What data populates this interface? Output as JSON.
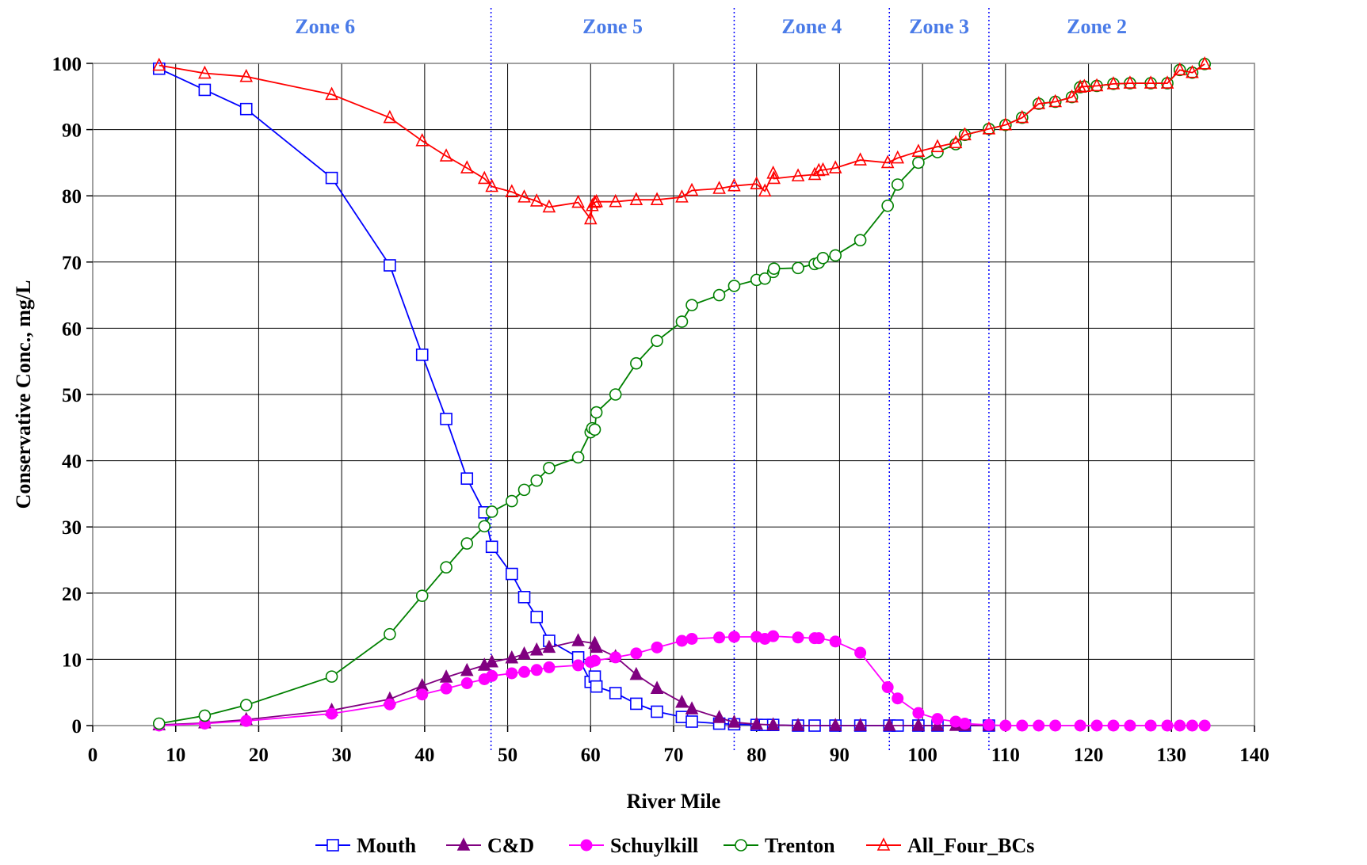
{
  "chart_data": {
    "type": "line",
    "xlabel": "River Mile",
    "ylabel": "Conservative Conc., mg/L",
    "xlim": [
      0,
      140
    ],
    "ylim": [
      0,
      100
    ],
    "xticks": [
      "0",
      "10",
      "20",
      "30",
      "40",
      "50",
      "60",
      "70",
      "80",
      "90",
      "100",
      "110",
      "120",
      "130",
      "140"
    ],
    "yticks": [
      "0",
      "10",
      "20",
      "30",
      "40",
      "50",
      "60",
      "70",
      "80",
      "90",
      "100"
    ],
    "grid": true,
    "legend_position": "bottom",
    "zones": [
      {
        "label": "Zone 6",
        "from": 8,
        "to": 48
      },
      {
        "label": "Zone 5",
        "from": 48,
        "to": 77.3
      },
      {
        "label": "Zone 4",
        "from": 77.3,
        "to": 96
      },
      {
        "label": "Zone 3",
        "from": 96,
        "to": 108
      },
      {
        "label": "Zone 2",
        "from": 108,
        "to": 134
      }
    ],
    "zone_boundaries": [
      48,
      77.3,
      96,
      108
    ],
    "series": [
      {
        "name": "Mouth",
        "color": "#0000FF",
        "marker": "square-open",
        "points": [
          [
            8,
            99.2
          ],
          [
            13.5,
            96
          ],
          [
            18.5,
            93.1
          ],
          [
            28.8,
            82.7
          ],
          [
            35.8,
            69.5
          ],
          [
            39.7,
            56
          ],
          [
            42.6,
            46.3
          ],
          [
            45.1,
            37.3
          ],
          [
            47.2,
            32.2
          ],
          [
            48.1,
            27
          ],
          [
            50.5,
            22.9
          ],
          [
            52,
            19.4
          ],
          [
            53.5,
            16.4
          ],
          [
            55,
            12.8
          ],
          [
            58.5,
            10.3
          ],
          [
            60,
            6.6
          ],
          [
            60.5,
            7.4
          ],
          [
            60.7,
            5.9
          ],
          [
            63,
            4.9
          ],
          [
            65.5,
            3.3
          ],
          [
            68,
            2.1
          ],
          [
            71,
            1.3
          ],
          [
            72.2,
            0.6
          ],
          [
            75.5,
            0.3
          ],
          [
            77.3,
            0.2
          ],
          [
            80,
            0.1
          ],
          [
            81,
            0.1
          ],
          [
            82,
            0.1
          ],
          [
            85,
            0
          ],
          [
            87,
            0
          ],
          [
            89.5,
            0
          ],
          [
            92.5,
            0
          ],
          [
            96,
            0
          ],
          [
            97,
            0
          ],
          [
            99.5,
            0
          ],
          [
            101.8,
            0
          ],
          [
            105.1,
            0
          ],
          [
            108,
            0
          ]
        ]
      },
      {
        "name": "C&D",
        "color": "#800080",
        "marker": "triangle-filled",
        "points": [
          [
            8,
            0.1
          ],
          [
            13.5,
            0.4
          ],
          [
            18.5,
            0.9
          ],
          [
            28.8,
            2.3
          ],
          [
            35.8,
            4
          ],
          [
            39.7,
            6
          ],
          [
            42.6,
            7.3
          ],
          [
            45.1,
            8.3
          ],
          [
            47.2,
            9.1
          ],
          [
            48.1,
            9.6
          ],
          [
            50.5,
            10.2
          ],
          [
            52,
            10.8
          ],
          [
            53.5,
            11.4
          ],
          [
            55,
            11.8
          ],
          [
            58.5,
            12.8
          ],
          [
            60.5,
            12.4
          ],
          [
            60.7,
            11.8
          ],
          [
            63,
            10.4
          ],
          [
            65.5,
            7.7
          ],
          [
            68,
            5.6
          ],
          [
            71,
            3.5
          ],
          [
            72.2,
            2.5
          ],
          [
            75.5,
            1.2
          ],
          [
            77.3,
            0.5
          ],
          [
            80,
            0.2
          ],
          [
            82,
            0.1
          ],
          [
            85,
            0
          ],
          [
            89.5,
            0
          ],
          [
            92.5,
            0
          ],
          [
            96,
            0
          ],
          [
            99.5,
            0
          ],
          [
            101.8,
            0
          ],
          [
            104,
            0
          ],
          [
            105.1,
            0
          ],
          [
            108,
            0
          ]
        ]
      },
      {
        "name": "Schuylkill",
        "color": "#FF00FF",
        "marker": "circle-filled",
        "points": [
          [
            8,
            0
          ],
          [
            13.5,
            0.3
          ],
          [
            18.5,
            0.7
          ],
          [
            28.8,
            1.8
          ],
          [
            35.8,
            3.2
          ],
          [
            39.7,
            4.7
          ],
          [
            42.6,
            5.6
          ],
          [
            45.1,
            6.4
          ],
          [
            47.2,
            7
          ],
          [
            48.1,
            7.5
          ],
          [
            50.5,
            7.9
          ],
          [
            52,
            8.1
          ],
          [
            53.5,
            8.4
          ],
          [
            55,
            8.8
          ],
          [
            58.5,
            9.1
          ],
          [
            60,
            9.6
          ],
          [
            60.5,
            9.8
          ],
          [
            63,
            10.3
          ],
          [
            65.5,
            10.9
          ],
          [
            68,
            11.8
          ],
          [
            71,
            12.8
          ],
          [
            72.2,
            13.1
          ],
          [
            75.5,
            13.3
          ],
          [
            77.3,
            13.4
          ],
          [
            80,
            13.4
          ],
          [
            81,
            13.1
          ],
          [
            82,
            13.5
          ],
          [
            85,
            13.3
          ],
          [
            87,
            13.2
          ],
          [
            87.5,
            13.2
          ],
          [
            89.5,
            12.7
          ],
          [
            92.5,
            11
          ],
          [
            95.8,
            5.8
          ],
          [
            97,
            4.1
          ],
          [
            99.5,
            1.9
          ],
          [
            101.8,
            1
          ],
          [
            104,
            0.6
          ],
          [
            105.1,
            0.3
          ],
          [
            108,
            0.1
          ],
          [
            110,
            0
          ],
          [
            112,
            0
          ],
          [
            114,
            0
          ],
          [
            116,
            0
          ],
          [
            119,
            0
          ],
          [
            121,
            0
          ],
          [
            123,
            0
          ],
          [
            125,
            0
          ],
          [
            127.5,
            0
          ],
          [
            129.5,
            0
          ],
          [
            131,
            0
          ],
          [
            132.5,
            0
          ],
          [
            134,
            0
          ]
        ]
      },
      {
        "name": "Trenton",
        "color": "#008000",
        "marker": "circle-open",
        "points": [
          [
            8,
            0.3
          ],
          [
            13.5,
            1.5
          ],
          [
            18.5,
            3.1
          ],
          [
            28.8,
            7.4
          ],
          [
            35.8,
            13.8
          ],
          [
            39.7,
            19.6
          ],
          [
            42.6,
            23.9
          ],
          [
            45.1,
            27.5
          ],
          [
            47.2,
            30.1
          ],
          [
            48.1,
            32.3
          ],
          [
            50.5,
            33.9
          ],
          [
            52,
            35.6
          ],
          [
            53.5,
            37
          ],
          [
            55,
            38.9
          ],
          [
            58.5,
            40.5
          ],
          [
            60,
            44.3
          ],
          [
            60.2,
            44.9
          ],
          [
            60.5,
            44.7
          ],
          [
            60.7,
            47.3
          ],
          [
            63,
            50
          ],
          [
            65.5,
            54.7
          ],
          [
            68,
            58.1
          ],
          [
            71,
            61
          ],
          [
            72.2,
            63.5
          ],
          [
            75.5,
            65
          ],
          [
            77.3,
            66.4
          ],
          [
            80,
            67.3
          ],
          [
            81,
            67.5
          ],
          [
            82,
            68.5
          ],
          [
            82.1,
            69
          ],
          [
            85,
            69.1
          ],
          [
            87,
            69.7
          ],
          [
            87.5,
            69.9
          ],
          [
            88,
            70.6
          ],
          [
            89.5,
            71
          ],
          [
            92.5,
            73.3
          ],
          [
            95.8,
            78.5
          ],
          [
            97,
            81.7
          ],
          [
            99.5,
            85
          ],
          [
            101.8,
            86.6
          ],
          [
            104,
            87.8
          ],
          [
            105.1,
            89.2
          ],
          [
            108,
            90.1
          ],
          [
            110,
            90.7
          ],
          [
            112,
            91.8
          ],
          [
            114,
            93.9
          ],
          [
            116,
            94.2
          ],
          [
            118,
            94.9
          ],
          [
            119,
            96.4
          ],
          [
            119.5,
            96.5
          ],
          [
            121,
            96.6
          ],
          [
            123,
            96.9
          ],
          [
            125,
            97
          ],
          [
            127.5,
            97
          ],
          [
            129.5,
            97
          ],
          [
            131,
            99
          ],
          [
            132.5,
            98.6
          ],
          [
            134,
            99.9
          ]
        ]
      },
      {
        "name": "All_Four_BCs",
        "color": "#FF0000",
        "marker": "triangle-open",
        "points": [
          [
            8,
            99.7
          ],
          [
            13.5,
            98.5
          ],
          [
            18.5,
            98
          ],
          [
            28.8,
            95.3
          ],
          [
            35.8,
            91.8
          ],
          [
            39.7,
            88.3
          ],
          [
            42.6,
            86
          ],
          [
            45.1,
            84.2
          ],
          [
            47.2,
            82.6
          ],
          [
            48.1,
            81.4
          ],
          [
            50.5,
            80.6
          ],
          [
            52,
            79.8
          ],
          [
            53.5,
            79.2
          ],
          [
            55,
            78.3
          ],
          [
            58.5,
            79
          ],
          [
            60,
            76.5
          ],
          [
            60.2,
            78.5
          ],
          [
            60.5,
            79
          ],
          [
            60.7,
            79.1
          ],
          [
            63,
            79.1
          ],
          [
            65.5,
            79.4
          ],
          [
            68,
            79.4
          ],
          [
            71,
            79.8
          ],
          [
            72.2,
            80.8
          ],
          [
            75.5,
            81.1
          ],
          [
            77.3,
            81.5
          ],
          [
            80,
            81.8
          ],
          [
            81,
            80.7
          ],
          [
            82,
            83.4
          ],
          [
            82.1,
            82.6
          ],
          [
            85,
            83
          ],
          [
            87,
            83.2
          ],
          [
            87.5,
            83.8
          ],
          [
            88,
            83.9
          ],
          [
            89.5,
            84.2
          ],
          [
            92.5,
            85.4
          ],
          [
            95.8,
            85
          ],
          [
            97,
            85.7
          ],
          [
            99.5,
            86.7
          ],
          [
            101.8,
            87.4
          ],
          [
            104,
            88
          ],
          [
            105.1,
            89.2
          ],
          [
            108,
            90.1
          ],
          [
            110,
            90.7
          ],
          [
            112,
            91.8
          ],
          [
            114,
            93.9
          ],
          [
            116,
            94.2
          ],
          [
            118,
            94.9
          ],
          [
            119,
            96.4
          ],
          [
            119.5,
            96.5
          ],
          [
            121,
            96.6
          ],
          [
            123,
            96.9
          ],
          [
            125,
            97
          ],
          [
            127.5,
            97
          ],
          [
            129.5,
            97
          ],
          [
            131,
            99
          ],
          [
            132.5,
            98.6
          ],
          [
            134,
            99.9
          ]
        ]
      }
    ]
  }
}
